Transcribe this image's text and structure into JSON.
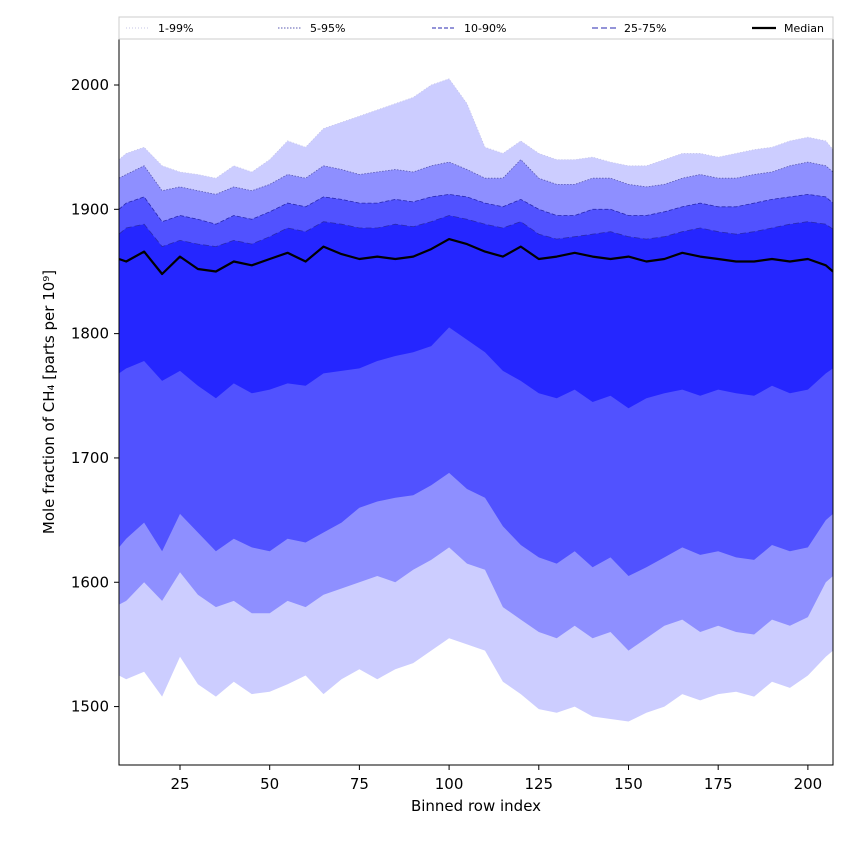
{
  "chart_data": {
    "type": "area",
    "xlabel": "Binned row index",
    "ylabel": "Mole fraction of CH₄ [parts per 10⁹]",
    "xlim": [
      8,
      207
    ],
    "ylim": [
      1453,
      2037
    ],
    "x_ticks": [
      25,
      50,
      75,
      100,
      125,
      150,
      175,
      200
    ],
    "y_ticks": [
      1500,
      1600,
      1700,
      1800,
      1900,
      2000
    ],
    "grid": false,
    "legend_position": "top",
    "x": [
      8,
      10,
      15,
      20,
      25,
      30,
      35,
      40,
      45,
      50,
      55,
      60,
      65,
      70,
      75,
      80,
      85,
      90,
      95,
      100,
      105,
      110,
      115,
      120,
      125,
      130,
      135,
      140,
      145,
      150,
      155,
      160,
      165,
      170,
      175,
      180,
      185,
      190,
      195,
      200,
      205,
      207
    ],
    "bands": [
      {
        "name": "1-99%",
        "color": "#cccdff",
        "edge": "#c4c4e6",
        "dash": "1,2",
        "lower": [
          1525,
          1522,
          1528,
          1508,
          1540,
          1518,
          1508,
          1520,
          1510,
          1512,
          1518,
          1525,
          1510,
          1522,
          1530,
          1522,
          1530,
          1535,
          1545,
          1555,
          1550,
          1545,
          1520,
          1510,
          1498,
          1495,
          1500,
          1492,
          1490,
          1488,
          1495,
          1500,
          1510,
          1505,
          1510,
          1512,
          1508,
          1520,
          1515,
          1525,
          1540,
          1545
        ],
        "upper": [
          1940,
          1945,
          1950,
          1935,
          1930,
          1928,
          1925,
          1935,
          1930,
          1940,
          1955,
          1950,
          1965,
          1970,
          1975,
          1980,
          1985,
          1990,
          2000,
          2005,
          1985,
          1950,
          1945,
          1955,
          1945,
          1940,
          1940,
          1942,
          1938,
          1935,
          1935,
          1940,
          1945,
          1945,
          1942,
          1945,
          1948,
          1950,
          1955,
          1958,
          1955,
          1948
        ]
      },
      {
        "name": "5-95%",
        "color": "#8e8fff",
        "edge": "#5a5ab0",
        "dash": "1.5,1.5",
        "lower": [
          1582,
          1585,
          1600,
          1585,
          1608,
          1590,
          1580,
          1585,
          1575,
          1575,
          1585,
          1580,
          1590,
          1595,
          1600,
          1605,
          1600,
          1610,
          1618,
          1628,
          1615,
          1610,
          1580,
          1570,
          1560,
          1555,
          1565,
          1555,
          1560,
          1545,
          1555,
          1565,
          1570,
          1560,
          1565,
          1560,
          1558,
          1570,
          1565,
          1572,
          1600,
          1605
        ],
        "upper": [
          1925,
          1928,
          1935,
          1915,
          1918,
          1915,
          1912,
          1918,
          1915,
          1920,
          1928,
          1925,
          1935,
          1932,
          1928,
          1930,
          1932,
          1930,
          1935,
          1938,
          1932,
          1925,
          1925,
          1940,
          1925,
          1920,
          1920,
          1925,
          1925,
          1920,
          1918,
          1920,
          1925,
          1928,
          1925,
          1925,
          1928,
          1930,
          1935,
          1938,
          1935,
          1930
        ]
      },
      {
        "name": "10-90%",
        "color": "#5152ff",
        "edge": "#2a2ab0",
        "dash": "4,2",
        "lower": [
          1628,
          1635,
          1648,
          1625,
          1655,
          1640,
          1625,
          1635,
          1628,
          1625,
          1635,
          1632,
          1640,
          1648,
          1660,
          1665,
          1668,
          1670,
          1678,
          1688,
          1675,
          1668,
          1645,
          1630,
          1620,
          1615,
          1625,
          1612,
          1620,
          1605,
          1612,
          1620,
          1628,
          1622,
          1625,
          1620,
          1618,
          1630,
          1625,
          1628,
          1650,
          1655
        ],
        "upper": [
          1900,
          1905,
          1910,
          1890,
          1895,
          1892,
          1888,
          1895,
          1892,
          1898,
          1905,
          1902,
          1910,
          1908,
          1905,
          1905,
          1908,
          1906,
          1910,
          1912,
          1910,
          1905,
          1902,
          1908,
          1900,
          1895,
          1895,
          1900,
          1900,
          1895,
          1895,
          1898,
          1902,
          1905,
          1902,
          1902,
          1905,
          1908,
          1910,
          1912,
          1910,
          1905
        ]
      },
      {
        "name": "25-75%",
        "color": "#2526ff",
        "edge": "#2a2ab0",
        "dash": "6,3",
        "lower": [
          1768,
          1772,
          1778,
          1762,
          1770,
          1758,
          1748,
          1760,
          1752,
          1755,
          1760,
          1758,
          1768,
          1770,
          1772,
          1778,
          1782,
          1785,
          1790,
          1805,
          1795,
          1785,
          1770,
          1762,
          1752,
          1748,
          1755,
          1745,
          1750,
          1740,
          1748,
          1752,
          1755,
          1750,
          1755,
          1752,
          1750,
          1758,
          1752,
          1755,
          1768,
          1772
        ],
        "upper": [
          1880,
          1885,
          1888,
          1870,
          1875,
          1872,
          1870,
          1875,
          1872,
          1878,
          1885,
          1882,
          1890,
          1888,
          1885,
          1885,
          1888,
          1886,
          1890,
          1895,
          1892,
          1888,
          1885,
          1890,
          1880,
          1876,
          1878,
          1880,
          1882,
          1878,
          1876,
          1878,
          1882,
          1885,
          1882,
          1880,
          1882,
          1885,
          1888,
          1890,
          1888,
          1884
        ]
      }
    ],
    "median": {
      "name": "Median",
      "color": "#000000",
      "values": [
        1860,
        1858,
        1866,
        1848,
        1862,
        1852,
        1850,
        1858,
        1855,
        1860,
        1865,
        1858,
        1870,
        1864,
        1860,
        1862,
        1860,
        1862,
        1868,
        1876,
        1872,
        1866,
        1862,
        1870,
        1860,
        1862,
        1865,
        1862,
        1860,
        1862,
        1858,
        1860,
        1865,
        1862,
        1860,
        1858,
        1858,
        1860,
        1858,
        1860,
        1855,
        1850
      ]
    },
    "legend": [
      "1-99%",
      "5-95%",
      "10-90%",
      "25-75%",
      "Median"
    ]
  }
}
